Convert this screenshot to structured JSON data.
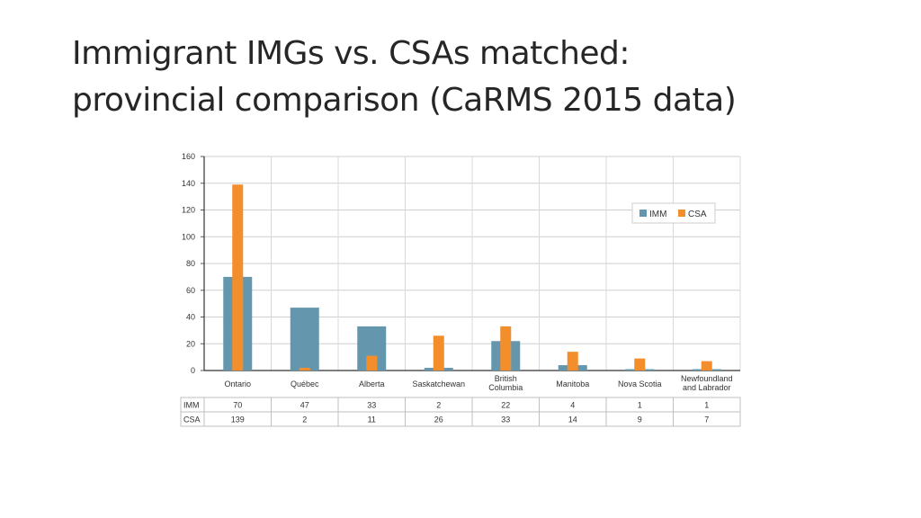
{
  "slide": {
    "title_line1": "Immigrant IMGs vs. CSAs matched:",
    "title_line2": "provincial comparison (CaRMS 2015 data)"
  },
  "chart_data": {
    "type": "bar",
    "title": "",
    "xlabel": "",
    "ylabel": "",
    "ylim": [
      0,
      160
    ],
    "yticks": [
      0,
      20,
      40,
      60,
      80,
      100,
      120,
      140,
      160
    ],
    "grid": true,
    "legend_position": "top-right",
    "categories": [
      [
        "Ontario"
      ],
      [
        "Québec"
      ],
      [
        "Alberta"
      ],
      [
        "Saskatchewan"
      ],
      [
        "British",
        "Columbia"
      ],
      [
        "Manitoba"
      ],
      [
        "Nova Scotia"
      ],
      [
        "Newfoundland",
        "and Labrador"
      ]
    ],
    "series": [
      {
        "name": "IMM",
        "color": "#6497ad",
        "values": [
          70,
          47,
          33,
          2,
          22,
          4,
          1,
          1
        ]
      },
      {
        "name": "CSA",
        "color": "#f28e2c",
        "values": [
          139,
          2,
          11,
          26,
          33,
          14,
          9,
          7
        ]
      }
    ],
    "data_table": true
  }
}
